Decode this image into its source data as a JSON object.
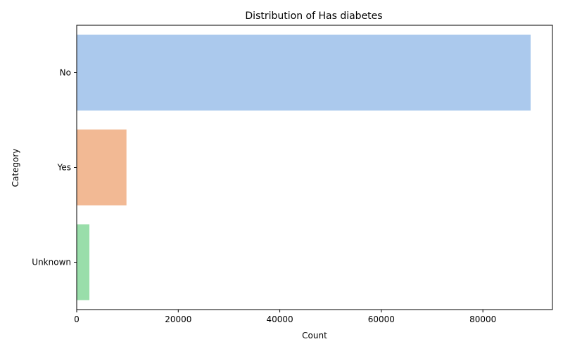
{
  "chart_data": {
    "type": "bar",
    "orientation": "horizontal",
    "title": "Distribution of Has diabetes",
    "xlabel": "Count",
    "ylabel": "Category",
    "categories": [
      "No",
      "Yes",
      "Unknown"
    ],
    "values": [
      89400,
      9800,
      2500
    ],
    "colors": [
      "#abc9ed",
      "#f2b994",
      "#99deaa"
    ],
    "xlim": [
      0,
      93700
    ],
    "xticks": [
      0,
      20000,
      40000,
      60000,
      80000
    ],
    "grid": false
  }
}
